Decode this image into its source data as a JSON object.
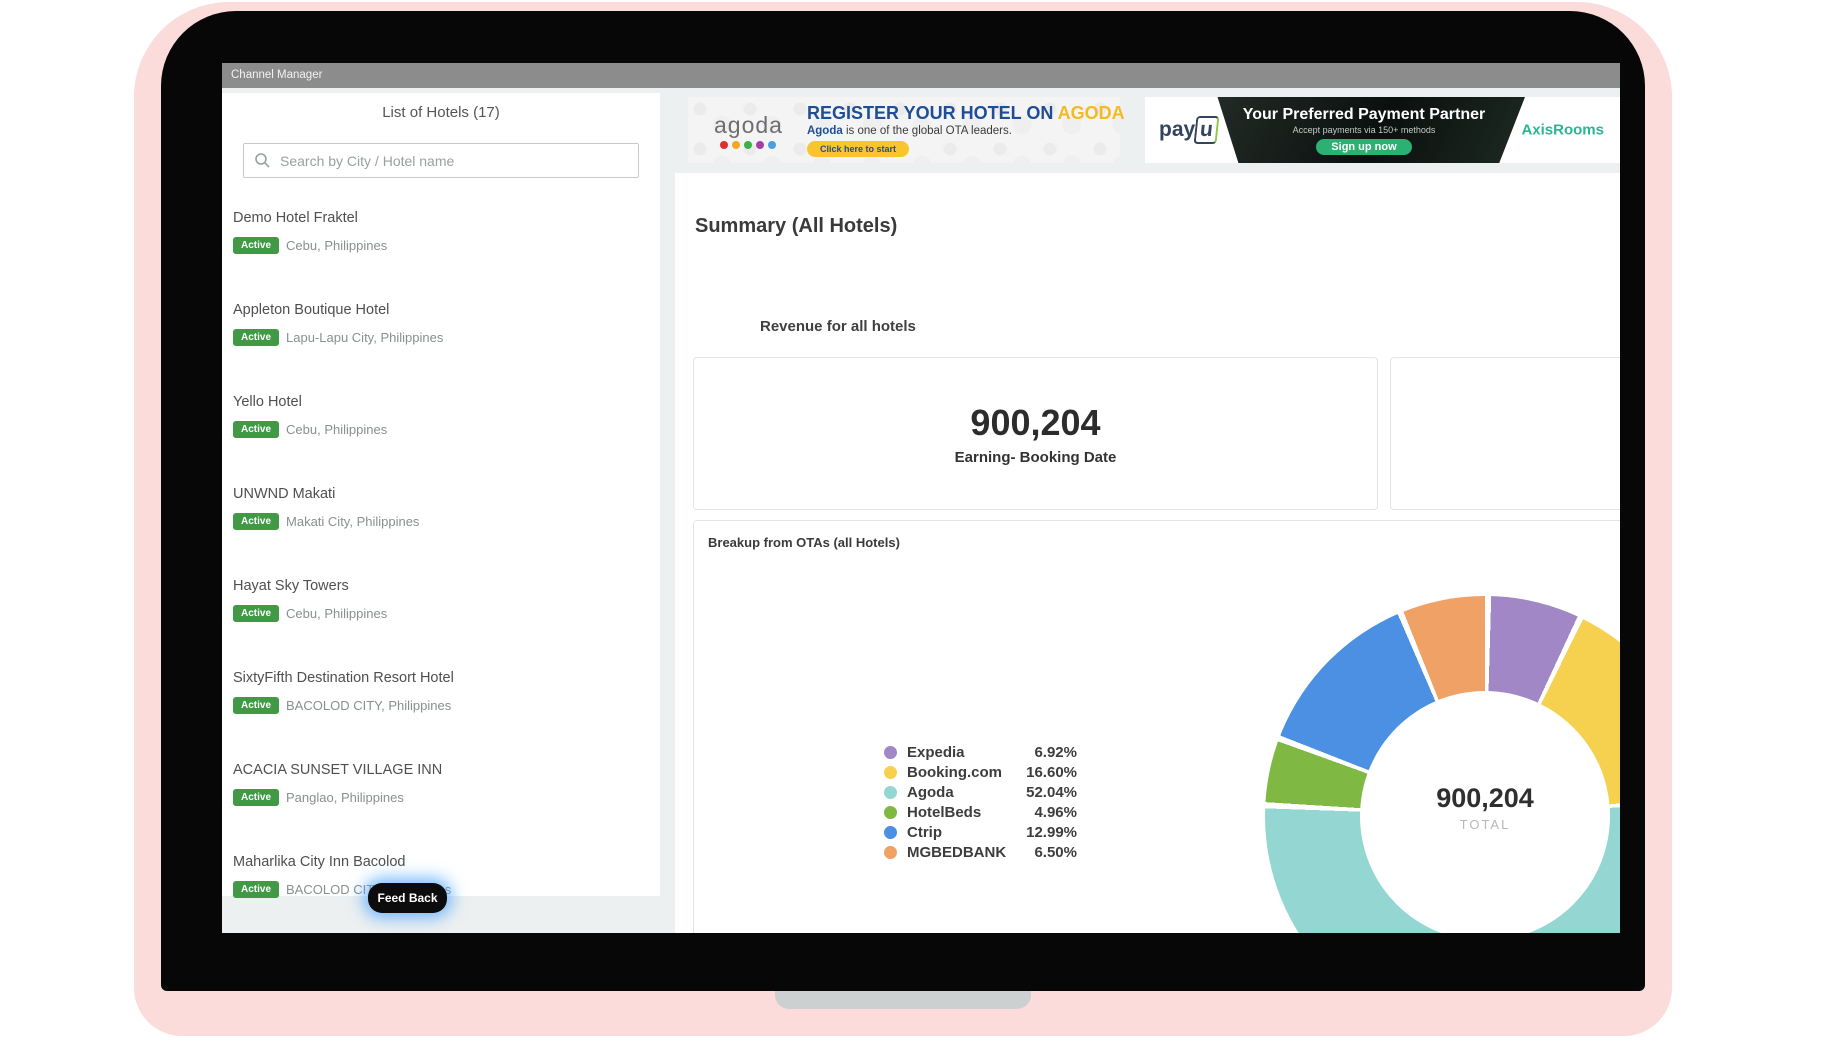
{
  "window": {
    "title": "Channel Manager"
  },
  "sidebar": {
    "title": "List of Hotels (17)",
    "search_placeholder": "Search by City / Hotel name",
    "hotels": [
      {
        "name": "Demo Hotel Fraktel",
        "status": "Active",
        "location": "Cebu, Philippines"
      },
      {
        "name": "Appleton Boutique Hotel",
        "status": "Active",
        "location": "Lapu-Lapu City, Philippines"
      },
      {
        "name": "Yello Hotel",
        "status": "Active",
        "location": "Cebu, Philippines"
      },
      {
        "name": "UNWND Makati",
        "status": "Active",
        "location": "Makati City, Philippines"
      },
      {
        "name": "Hayat Sky Towers",
        "status": "Active",
        "location": "Cebu, Philippines"
      },
      {
        "name": "SixtyFifth Destination Resort Hotel",
        "status": "Active",
        "location": "BACOLOD CITY, Philippines"
      },
      {
        "name": "ACACIA SUNSET VILLAGE INN",
        "status": "Active",
        "location": "Panglao, Philippines"
      },
      {
        "name": "Maharlika City Inn Bacolod",
        "status": "Active",
        "location": "BACOLOD CITY, Philippines"
      }
    ],
    "feedback_label": "Feed Back"
  },
  "banners": {
    "agoda": {
      "logo": "agoda",
      "headline_prefix": "REGISTER YOUR HOTEL ON ",
      "headline_highlight": "AGODA",
      "sub_bold": "Agoda",
      "sub_rest": " is one of the global OTA leaders.",
      "cta": "Click here to start"
    },
    "payu": {
      "logo_pay": "pay",
      "logo_u": "u",
      "title": "Your Preferred Payment Partner",
      "subtitle": "Accept payments via 150+ methods",
      "cta": "Sign up now",
      "partner": "AxisRooms"
    }
  },
  "main": {
    "title": "Summary (All Hotels)",
    "revenue_heading": "Revenue for all hotels",
    "revenue_value": "900,204",
    "revenue_label": "Earning- Booking Date",
    "breakup_heading": "Breakup from OTAs (all Hotels)"
  },
  "chart_data": {
    "type": "pie",
    "donut": true,
    "title": "Breakup from OTAs (all Hotels)",
    "center_value": "900,204",
    "center_label": "TOTAL",
    "legend_position": "left",
    "series": [
      {
        "name": "Expedia",
        "value": 6.92,
        "display": "6.92%",
        "color": "#a287c6"
      },
      {
        "name": "Booking.com",
        "value": 16.6,
        "display": "16.60%",
        "color": "#f6d14f"
      },
      {
        "name": "Agoda",
        "value": 52.04,
        "display": "52.04%",
        "color": "#93d6d2"
      },
      {
        "name": "HotelBeds",
        "value": 4.96,
        "display": "4.96%",
        "color": "#7fb843"
      },
      {
        "name": "Ctrip",
        "value": 12.99,
        "display": "12.99%",
        "color": "#4b90e2"
      },
      {
        "name": "MGBEDBANK",
        "value": 6.5,
        "display": "6.50%",
        "color": "#f0a266"
      }
    ]
  },
  "colors": {
    "topbar_gray": "#8c8c8c",
    "app_background": "#edf0f0",
    "active_badge_green": "#419845",
    "laptop_pink": "#fbdcda",
    "agoda_blue": "#1f4e96",
    "agoda_yellow": "#f5b921",
    "agoda_logo_dots": [
      "#e12f2f",
      "#f5a623",
      "#3faf49",
      "#a43fa4",
      "#4a9fe0"
    ],
    "payu_cta_green": "#2bb273",
    "axisrooms_teal": "#2ab596",
    "feedback_glow_blue": "#4aa3ff"
  }
}
